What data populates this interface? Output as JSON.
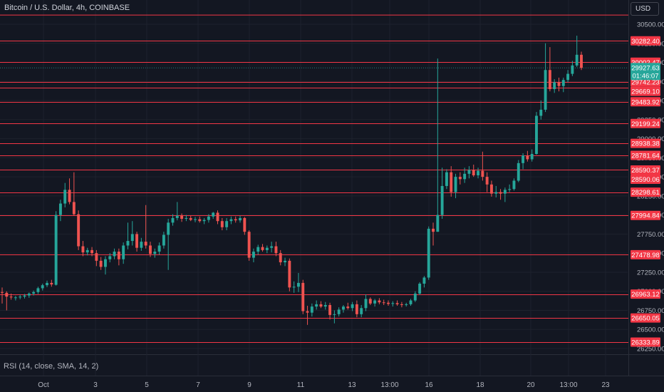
{
  "header": {
    "title": "Bitcoin / U.S. Dollar, 4h, COINBASE",
    "currency": "USD"
  },
  "indicator": {
    "label": "RSI (14, close, SMA, 14, 2)"
  },
  "colors": {
    "background": "#131722",
    "up": "#26a69a",
    "down": "#ef5350",
    "level_line": "#f23645",
    "grid": "#1e222d",
    "axis_text": "#b2b5be"
  },
  "chart_data": {
    "type": "candlestick",
    "title": "Bitcoin / U.S. Dollar, 4h, COINBASE",
    "xlabel": "",
    "ylabel": "",
    "grid": true,
    "y_ticks": [
      "30500.00",
      "30250.00",
      "30000.00",
      "29750.00",
      "29500.00",
      "29250.00",
      "29000.00",
      "28750.00",
      "28500.00",
      "28250.00",
      "28000.00",
      "27750.00",
      "27500.00",
      "27250.00",
      "27000.00",
      "26750.00",
      "26500.00",
      "26250.00"
    ],
    "x_ticks": [
      "Oct",
      "3",
      "5",
      "7",
      "9",
      "11",
      "13",
      "13:00",
      "16",
      "18",
      "20",
      "13:00",
      "23"
    ],
    "current_price": {
      "value": "29927.63",
      "countdown": "01:46:07"
    },
    "horizontal_levels": [
      "30282.40",
      "30002.47",
      "29742.23",
      "29669.10",
      "29483.92",
      "29199.24",
      "28938.38",
      "28781.64",
      "28590.37",
      "28590.06",
      "28298.61",
      "27994.84",
      "27478.98",
      "26963.12",
      "26650.05",
      "26333.89"
    ],
    "top_line_value": 30620,
    "candles": [
      {
        "t": "Sep 30 12:00",
        "o": 26990,
        "h": 27050,
        "l": 26840,
        "c": 26980
      },
      {
        "t": "Sep 30 16:00",
        "o": 26980,
        "h": 27000,
        "l": 26750,
        "c": 26930
      },
      {
        "t": "Sep 30 20:00",
        "o": 26930,
        "h": 26970,
        "l": 26890,
        "c": 26920
      },
      {
        "t": "Oct 1 00:00",
        "o": 26915,
        "h": 26940,
        "l": 26880,
        "c": 26920
      },
      {
        "t": "Oct 1 04:00",
        "o": 26920,
        "h": 26955,
        "l": 26895,
        "c": 26930
      },
      {
        "t": "Oct 1 08:00",
        "o": 26930,
        "h": 26965,
        "l": 26905,
        "c": 26945
      },
      {
        "t": "Oct 1 12:00",
        "o": 26945,
        "h": 26985,
        "l": 26915,
        "c": 26970
      },
      {
        "t": "Oct 1 16:00",
        "o": 26970,
        "h": 27010,
        "l": 26945,
        "c": 26990
      },
      {
        "t": "Oct 1 20:00",
        "o": 26990,
        "h": 27060,
        "l": 26965,
        "c": 27040
      },
      {
        "t": "Oct 2 00:00",
        "o": 27040,
        "h": 27100,
        "l": 27010,
        "c": 27080
      },
      {
        "t": "Oct 2 04:00",
        "o": 27080,
        "h": 27140,
        "l": 27055,
        "c": 27110
      },
      {
        "t": "Oct 2 08:00",
        "o": 27110,
        "h": 27150,
        "l": 27060,
        "c": 27090
      },
      {
        "t": "Oct 2 12:00",
        "o": 27085,
        "h": 28050,
        "l": 27075,
        "c": 28000
      },
      {
        "t": "Oct 2 16:00",
        "o": 28000,
        "h": 28200,
        "l": 27920,
        "c": 28150
      },
      {
        "t": "Oct 2 20:00",
        "o": 28150,
        "h": 28420,
        "l": 28100,
        "c": 28330
      },
      {
        "t": "Oct 3 00:00",
        "o": 28330,
        "h": 28480,
        "l": 28140,
        "c": 28170
      },
      {
        "t": "Oct 3 04:00",
        "o": 28170,
        "h": 28560,
        "l": 27990,
        "c": 28010
      },
      {
        "t": "Oct 3 08:00",
        "o": 28010,
        "h": 28060,
        "l": 27540,
        "c": 27590
      },
      {
        "t": "Oct 3 12:00",
        "o": 27590,
        "h": 27660,
        "l": 27460,
        "c": 27510
      },
      {
        "t": "Oct 3 16:00",
        "o": 27510,
        "h": 27570,
        "l": 27470,
        "c": 27540
      },
      {
        "t": "Oct 3 20:00",
        "o": 27540,
        "h": 27580,
        "l": 27460,
        "c": 27500
      },
      {
        "t": "Oct 4 00:00",
        "o": 27500,
        "h": 27540,
        "l": 27330,
        "c": 27400
      },
      {
        "t": "Oct 4 04:00",
        "o": 27400,
        "h": 27450,
        "l": 27280,
        "c": 27320
      },
      {
        "t": "Oct 4 08:00",
        "o": 27320,
        "h": 27460,
        "l": 27220,
        "c": 27420
      },
      {
        "t": "Oct 4 12:00",
        "o": 27420,
        "h": 27500,
        "l": 27380,
        "c": 27460
      },
      {
        "t": "Oct 4 16:00",
        "o": 27460,
        "h": 27560,
        "l": 27420,
        "c": 27520
      },
      {
        "t": "Oct 4 20:00",
        "o": 27520,
        "h": 27560,
        "l": 27340,
        "c": 27420
      },
      {
        "t": "Oct 5 00:00",
        "o": 27420,
        "h": 27640,
        "l": 27360,
        "c": 27600
      },
      {
        "t": "Oct 5 04:00",
        "o": 27600,
        "h": 27900,
        "l": 27550,
        "c": 27660
      },
      {
        "t": "Oct 5 08:00",
        "o": 27660,
        "h": 27920,
        "l": 27600,
        "c": 27750
      },
      {
        "t": "Oct 5 12:00",
        "o": 27750,
        "h": 27780,
        "l": 27520,
        "c": 27570
      },
      {
        "t": "Oct 5 16:00",
        "o": 27570,
        "h": 27700,
        "l": 27530,
        "c": 27650
      },
      {
        "t": "Oct 5 20:00",
        "o": 27650,
        "h": 28130,
        "l": 27560,
        "c": 27600
      },
      {
        "t": "Oct 6 00:00",
        "o": 27600,
        "h": 27650,
        "l": 27450,
        "c": 27490
      },
      {
        "t": "Oct 6 04:00",
        "o": 27490,
        "h": 27560,
        "l": 27440,
        "c": 27520
      },
      {
        "t": "Oct 6 08:00",
        "o": 27520,
        "h": 27640,
        "l": 27480,
        "c": 27600
      },
      {
        "t": "Oct 6 12:00",
        "o": 27600,
        "h": 27780,
        "l": 27560,
        "c": 27740
      },
      {
        "t": "Oct 6 16:00",
        "o": 27740,
        "h": 27950,
        "l": 27280,
        "c": 27900
      },
      {
        "t": "Oct 6 20:00",
        "o": 27900,
        "h": 28010,
        "l": 27860,
        "c": 27960
      },
      {
        "t": "Oct 7 00:00",
        "o": 27960,
        "h": 28170,
        "l": 27930,
        "c": 27990
      },
      {
        "t": "Oct 7 04:00",
        "o": 27990,
        "h": 28020,
        "l": 27910,
        "c": 27950
      },
      {
        "t": "Oct 7 08:00",
        "o": 27950,
        "h": 28000,
        "l": 27920,
        "c": 27960
      },
      {
        "t": "Oct 7 12:00",
        "o": 27960,
        "h": 27990,
        "l": 27920,
        "c": 27935
      },
      {
        "t": "Oct 7 16:00",
        "o": 27935,
        "h": 27975,
        "l": 27905,
        "c": 27945
      },
      {
        "t": "Oct 7 20:00",
        "o": 27945,
        "h": 27980,
        "l": 27900,
        "c": 27920
      },
      {
        "t": "Oct 8 00:00",
        "o": 27920,
        "h": 27960,
        "l": 27880,
        "c": 27935
      },
      {
        "t": "Oct 8 04:00",
        "o": 27935,
        "h": 28010,
        "l": 27900,
        "c": 27980
      },
      {
        "t": "Oct 8 08:00",
        "o": 27980,
        "h": 28040,
        "l": 27950,
        "c": 28030
      },
      {
        "t": "Oct 8 12:00",
        "o": 28030,
        "h": 28060,
        "l": 27880,
        "c": 27920
      },
      {
        "t": "Oct 8 16:00",
        "o": 27920,
        "h": 27960,
        "l": 27800,
        "c": 27840
      },
      {
        "t": "Oct 8 20:00",
        "o": 27840,
        "h": 27960,
        "l": 27800,
        "c": 27920
      },
      {
        "t": "Oct 9 00:00",
        "o": 27920,
        "h": 27980,
        "l": 27880,
        "c": 27945
      },
      {
        "t": "Oct 9 04:00",
        "o": 27945,
        "h": 27980,
        "l": 27900,
        "c": 27930
      },
      {
        "t": "Oct 9 08:00",
        "o": 27930,
        "h": 27990,
        "l": 27900,
        "c": 27960
      },
      {
        "t": "Oct 9 12:00",
        "o": 27960,
        "h": 27975,
        "l": 27740,
        "c": 27780
      },
      {
        "t": "Oct 9 16:00",
        "o": 27780,
        "h": 27800,
        "l": 27400,
        "c": 27440
      },
      {
        "t": "Oct 9 20:00",
        "o": 27440,
        "h": 27560,
        "l": 27380,
        "c": 27520
      },
      {
        "t": "Oct 10 00:00",
        "o": 27520,
        "h": 27610,
        "l": 27480,
        "c": 27580
      },
      {
        "t": "Oct 10 04:00",
        "o": 27580,
        "h": 27620,
        "l": 27520,
        "c": 27540
      },
      {
        "t": "Oct 10 08:00",
        "o": 27540,
        "h": 27600,
        "l": 27500,
        "c": 27570
      },
      {
        "t": "Oct 10 12:00",
        "o": 27570,
        "h": 27650,
        "l": 27510,
        "c": 27590
      },
      {
        "t": "Oct 10 16:00",
        "o": 27590,
        "h": 27650,
        "l": 27460,
        "c": 27500
      },
      {
        "t": "Oct 10 20:00",
        "o": 27500,
        "h": 27540,
        "l": 27340,
        "c": 27380
      },
      {
        "t": "Oct 11 00:00",
        "o": 27380,
        "h": 27440,
        "l": 27330,
        "c": 27400
      },
      {
        "t": "Oct 11 04:00",
        "o": 27400,
        "h": 27430,
        "l": 27000,
        "c": 27050
      },
      {
        "t": "Oct 11 08:00",
        "o": 27050,
        "h": 27130,
        "l": 26980,
        "c": 27060
      },
      {
        "t": "Oct 11 12:00",
        "o": 27060,
        "h": 27240,
        "l": 26990,
        "c": 27110
      },
      {
        "t": "Oct 11 16:00",
        "o": 27110,
        "h": 27150,
        "l": 26700,
        "c": 26740
      },
      {
        "t": "Oct 11 20:00",
        "o": 26740,
        "h": 26810,
        "l": 26560,
        "c": 26720
      },
      {
        "t": "Oct 12 00:00",
        "o": 26720,
        "h": 26840,
        "l": 26670,
        "c": 26800
      },
      {
        "t": "Oct 12 04:00",
        "o": 26800,
        "h": 26880,
        "l": 26760,
        "c": 26830
      },
      {
        "t": "Oct 12 08:00",
        "o": 26830,
        "h": 26870,
        "l": 26780,
        "c": 26800
      },
      {
        "t": "Oct 12 12:00",
        "o": 26800,
        "h": 26860,
        "l": 26760,
        "c": 26820
      },
      {
        "t": "Oct 12 16:00",
        "o": 26820,
        "h": 26850,
        "l": 26630,
        "c": 26690
      },
      {
        "t": "Oct 12 20:00",
        "o": 26690,
        "h": 26750,
        "l": 26580,
        "c": 26700
      },
      {
        "t": "Oct 13 00:00",
        "o": 26700,
        "h": 26790,
        "l": 26670,
        "c": 26760
      },
      {
        "t": "Oct 13 04:00",
        "o": 26760,
        "h": 26820,
        "l": 26720,
        "c": 26800
      },
      {
        "t": "Oct 13 08:00",
        "o": 26800,
        "h": 26850,
        "l": 26760,
        "c": 26780
      },
      {
        "t": "Oct 13 12:00",
        "o": 26780,
        "h": 26860,
        "l": 26740,
        "c": 26830
      },
      {
        "t": "Oct 13 16:00",
        "o": 26830,
        "h": 26880,
        "l": 26660,
        "c": 26700
      },
      {
        "t": "Oct 13 20:00",
        "o": 26700,
        "h": 26820,
        "l": 26660,
        "c": 26780
      },
      {
        "t": "Oct 14 00:00",
        "o": 26780,
        "h": 26960,
        "l": 26740,
        "c": 26900
      },
      {
        "t": "Oct 14 04:00",
        "o": 26900,
        "h": 26920,
        "l": 26820,
        "c": 26840
      },
      {
        "t": "Oct 14 08:00",
        "o": 26840,
        "h": 26900,
        "l": 26800,
        "c": 26880
      },
      {
        "t": "Oct 14 12:00",
        "o": 26880,
        "h": 26910,
        "l": 26830,
        "c": 26855
      },
      {
        "t": "Oct 14 16:00",
        "o": 26855,
        "h": 26890,
        "l": 26820,
        "c": 26850
      },
      {
        "t": "Oct 14 20:00",
        "o": 26850,
        "h": 26880,
        "l": 26810,
        "c": 26835
      },
      {
        "t": "Oct 15 00:00",
        "o": 26835,
        "h": 26870,
        "l": 26800,
        "c": 26845
      },
      {
        "t": "Oct 15 04:00",
        "o": 26845,
        "h": 26880,
        "l": 26810,
        "c": 26830
      },
      {
        "t": "Oct 15 08:00",
        "o": 26830,
        "h": 26860,
        "l": 26790,
        "c": 26820
      },
      {
        "t": "Oct 15 12:00",
        "o": 26820,
        "h": 26850,
        "l": 26800,
        "c": 26830
      },
      {
        "t": "Oct 15 16:00",
        "o": 26830,
        "h": 26900,
        "l": 26810,
        "c": 26880
      },
      {
        "t": "Oct 15 20:00",
        "o": 26880,
        "h": 27000,
        "l": 26860,
        "c": 26970
      },
      {
        "t": "Oct 16 00:00",
        "o": 26970,
        "h": 27120,
        "l": 26950,
        "c": 27100
      },
      {
        "t": "Oct 16 04:00",
        "o": 27100,
        "h": 27200,
        "l": 27050,
        "c": 27180
      },
      {
        "t": "Oct 16 08:00",
        "o": 27180,
        "h": 27850,
        "l": 27150,
        "c": 27820
      },
      {
        "t": "Oct 16 12:00",
        "o": 27820,
        "h": 27900,
        "l": 27600,
        "c": 27780
      },
      {
        "t": "Oct 16 16:00",
        "o": 27780,
        "h": 30050,
        "l": 27780,
        "c": 28000
      },
      {
        "t": "Oct 16 20:00",
        "o": 28000,
        "h": 28620,
        "l": 27950,
        "c": 28380
      },
      {
        "t": "Oct 17 00:00",
        "o": 28380,
        "h": 28600,
        "l": 28340,
        "c": 28560
      },
      {
        "t": "Oct 17 04:00",
        "o": 28560,
        "h": 28640,
        "l": 28240,
        "c": 28300
      },
      {
        "t": "Oct 17 08:00",
        "o": 28300,
        "h": 28540,
        "l": 28220,
        "c": 28500
      },
      {
        "t": "Oct 17 12:00",
        "o": 28500,
        "h": 28560,
        "l": 28400,
        "c": 28470
      },
      {
        "t": "Oct 17 16:00",
        "o": 28470,
        "h": 28620,
        "l": 28420,
        "c": 28540
      },
      {
        "t": "Oct 17 20:00",
        "o": 28540,
        "h": 28640,
        "l": 28480,
        "c": 28590
      },
      {
        "t": "Oct 18 00:00",
        "o": 28590,
        "h": 28660,
        "l": 28500,
        "c": 28520
      },
      {
        "t": "Oct 18 04:00",
        "o": 28520,
        "h": 28620,
        "l": 28480,
        "c": 28580
      },
      {
        "t": "Oct 18 08:00",
        "o": 28580,
        "h": 28830,
        "l": 28450,
        "c": 28500
      },
      {
        "t": "Oct 18 12:00",
        "o": 28500,
        "h": 28560,
        "l": 28300,
        "c": 28400
      },
      {
        "t": "Oct 18 16:00",
        "o": 28400,
        "h": 28450,
        "l": 28240,
        "c": 28280
      },
      {
        "t": "Oct 18 20:00",
        "o": 28280,
        "h": 28380,
        "l": 28230,
        "c": 28300
      },
      {
        "t": "Oct 19 00:00",
        "o": 28300,
        "h": 28340,
        "l": 28200,
        "c": 28280
      },
      {
        "t": "Oct 19 04:00",
        "o": 28280,
        "h": 28360,
        "l": 28170,
        "c": 28330
      },
      {
        "t": "Oct 19 08:00",
        "o": 28330,
        "h": 28400,
        "l": 28300,
        "c": 28340
      },
      {
        "t": "Oct 19 12:00",
        "o": 28340,
        "h": 28480,
        "l": 28320,
        "c": 28450
      },
      {
        "t": "Oct 19 16:00",
        "o": 28450,
        "h": 28720,
        "l": 28430,
        "c": 28680
      },
      {
        "t": "Oct 19 20:00",
        "o": 28680,
        "h": 28810,
        "l": 28600,
        "c": 28780
      },
      {
        "t": "Oct 20 00:00",
        "o": 28780,
        "h": 28840,
        "l": 28700,
        "c": 28730
      },
      {
        "t": "Oct 20 04:00",
        "o": 28730,
        "h": 28860,
        "l": 28700,
        "c": 28800
      },
      {
        "t": "Oct 20 08:00",
        "o": 28800,
        "h": 29350,
        "l": 28790,
        "c": 29300
      },
      {
        "t": "Oct 20 12:00",
        "o": 29300,
        "h": 29500,
        "l": 29250,
        "c": 29380
      },
      {
        "t": "Oct 20 16:00",
        "o": 29380,
        "h": 30250,
        "l": 29350,
        "c": 29900
      },
      {
        "t": "Oct 20 20:00",
        "o": 29900,
        "h": 30200,
        "l": 29620,
        "c": 29650
      },
      {
        "t": "Oct 21 00:00",
        "o": 29650,
        "h": 29780,
        "l": 29600,
        "c": 29740
      },
      {
        "t": "Oct 21 04:00",
        "o": 29740,
        "h": 29800,
        "l": 29620,
        "c": 29690
      },
      {
        "t": "Oct 21 08:00",
        "o": 29690,
        "h": 29800,
        "l": 29610,
        "c": 29770
      },
      {
        "t": "Oct 21 12:00",
        "o": 29770,
        "h": 29900,
        "l": 29740,
        "c": 29850
      },
      {
        "t": "Oct 21 16:00",
        "o": 29850,
        "h": 30020,
        "l": 29820,
        "c": 29960
      },
      {
        "t": "Oct 21 20:00",
        "o": 29960,
        "h": 30350,
        "l": 29940,
        "c": 30100
      },
      {
        "t": "Oct 22 00:00",
        "o": 30100,
        "h": 30140,
        "l": 29900,
        "c": 29928
      }
    ]
  }
}
